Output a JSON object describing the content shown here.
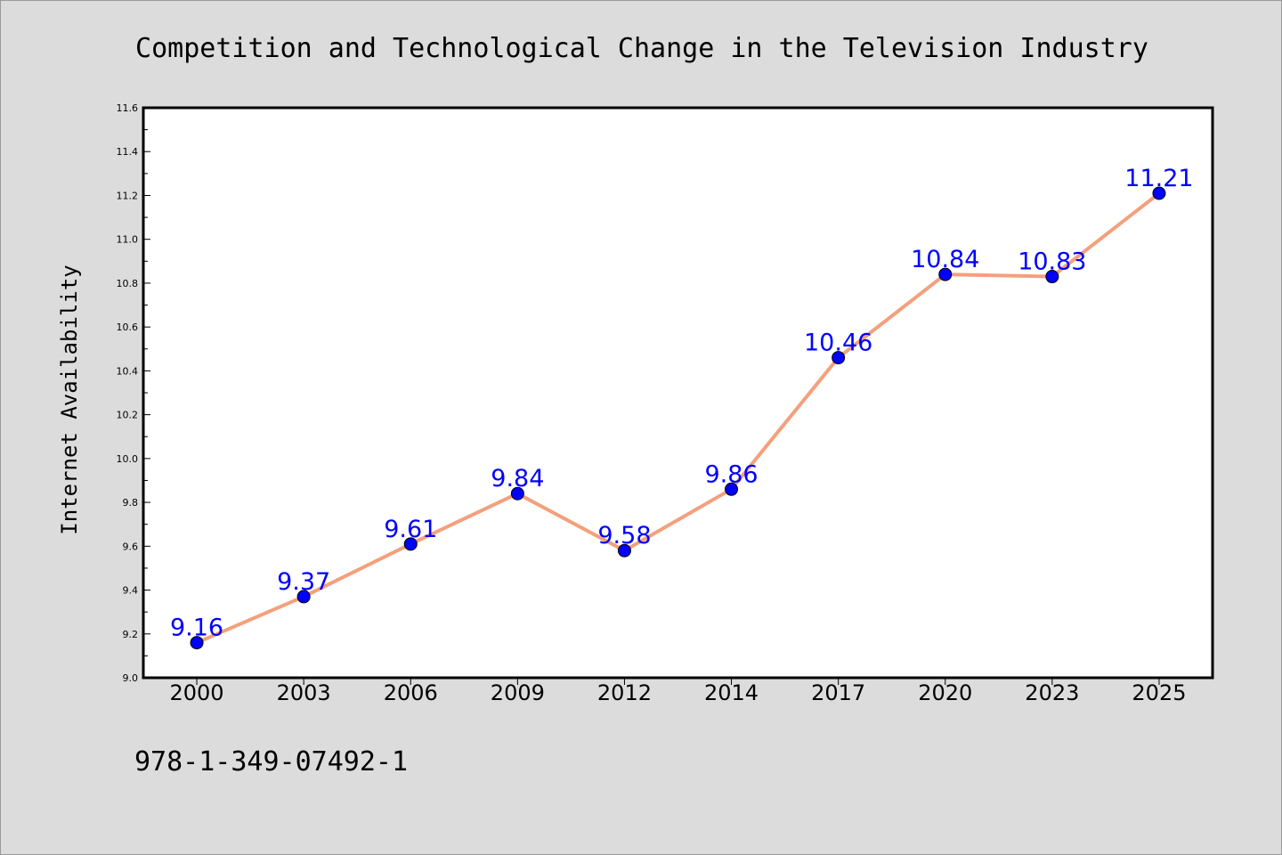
{
  "chart_data": {
    "type": "line",
    "title": "Competition and Technological Change in the Television Industry",
    "xlabel": "",
    "ylabel": "Internet Availability",
    "categories": [
      "2000",
      "2003",
      "2006",
      "2009",
      "2012",
      "2014",
      "2017",
      "2020",
      "2023",
      "2025"
    ],
    "series": [
      {
        "values": [
          9.16,
          9.37,
          9.61,
          9.84,
          9.58,
          9.86,
          10.46,
          10.84,
          10.83,
          11.21
        ],
        "data_labels": [
          "9.16",
          "9.37",
          "9.61",
          "9.84",
          "9.58",
          "9.86",
          "10.46",
          "10.84",
          "10.83",
          "11.21"
        ]
      }
    ],
    "ylim": [
      9.0,
      11.6
    ],
    "yticks": [
      "9.0",
      "9.2",
      "9.4",
      "9.6",
      "9.8",
      "10.0",
      "10.2",
      "10.4",
      "10.6",
      "10.8",
      "11.0",
      "11.2",
      "11.4",
      "11.6"
    ],
    "grid": false,
    "colors": {
      "line": "#f4a07c",
      "marker": "#0000ff",
      "data_label": "#0000ff",
      "background": "#dcdcdc",
      "plot_background": "#ffffff"
    }
  },
  "footer_text": "978-1-349-07492-1"
}
